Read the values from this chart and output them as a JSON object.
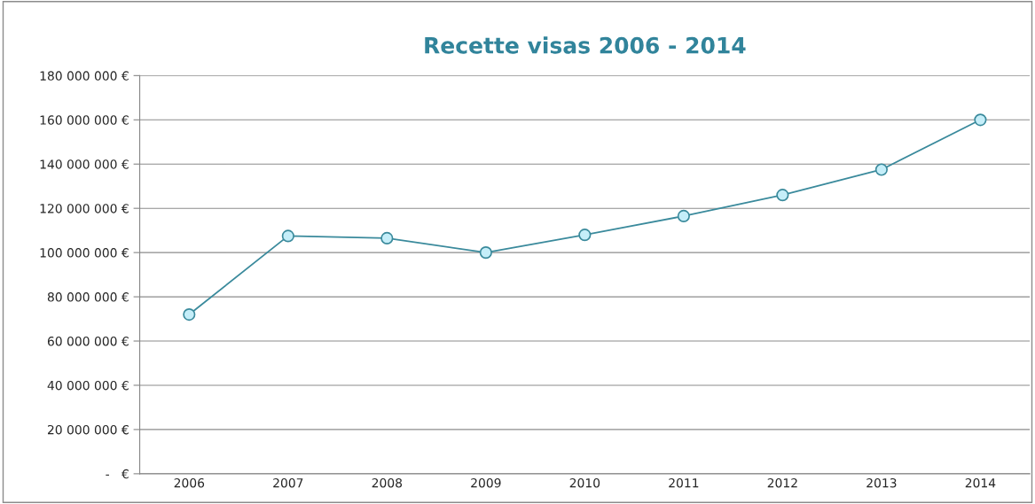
{
  "chart_data": {
    "type": "line",
    "title": "Recette visas 2006 - 2014",
    "categories": [
      "2006",
      "2007",
      "2008",
      "2009",
      "2010",
      "2011",
      "2012",
      "2013",
      "2014"
    ],
    "series": [
      {
        "color": "#3a8a9c",
        "values": [
          72000000,
          107500000,
          106500000,
          100000000,
          108000000,
          116500000,
          126000000,
          137500000,
          160000000
        ]
      }
    ],
    "ylim": [
      0,
      180000000
    ],
    "yticks": [
      {
        "value": 0,
        "label": "-   €"
      },
      {
        "value": 20000000,
        "label": "20 000 000 €"
      },
      {
        "value": 40000000,
        "label": "40 000 000 €"
      },
      {
        "value": 60000000,
        "label": "60 000 000 €"
      },
      {
        "value": 80000000,
        "label": "80 000 000 €"
      },
      {
        "value": 100000000,
        "label": "100 000 000 €"
      },
      {
        "value": 120000000,
        "label": "120 000 000 €"
      },
      {
        "value": 140000000,
        "label": "140 000 000 €"
      },
      {
        "value": 160000000,
        "label": "160 000 000 €"
      },
      {
        "value": 180000000,
        "label": "180 000 000 €"
      }
    ],
    "grid": "y",
    "legend": false,
    "marker": "circle",
    "line_style": "solid"
  }
}
